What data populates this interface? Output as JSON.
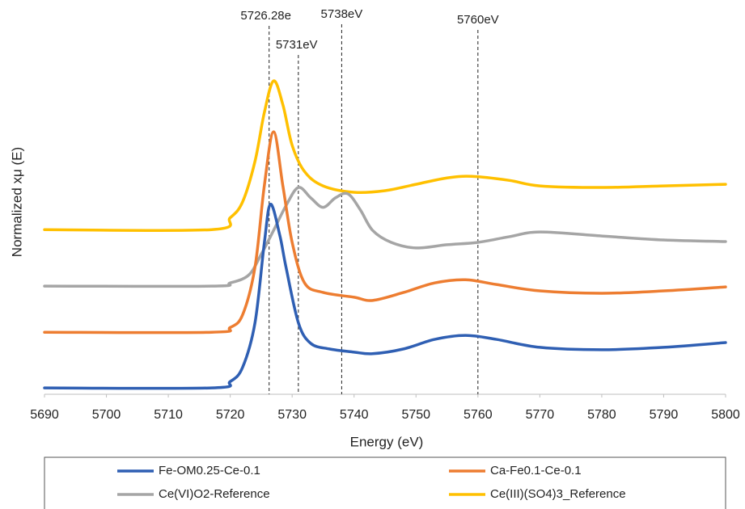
{
  "chart_data": {
    "type": "line",
    "x_label": "Energy (eV)",
    "y_label": "Normalized xμ (E)",
    "xlim": [
      5690,
      5800
    ],
    "xticks": [
      5690,
      5700,
      5710,
      5720,
      5730,
      5740,
      5750,
      5760,
      5770,
      5780,
      5790,
      5800
    ],
    "ylim": [
      0,
      4.5
    ],
    "legend": "bottom",
    "series": [
      {
        "name": "Fe-OM0.25-Ce-0.1",
        "color": "#2f5fb3",
        "x": [
          5690,
          5717,
          5720,
          5722,
          5724,
          5725.5,
          5726.5,
          5728,
          5729,
          5731,
          5733,
          5736,
          5740,
          5743,
          5748,
          5753,
          5758,
          5763,
          5770,
          5780,
          5790,
          5800
        ],
        "values": [
          0.08,
          0.08,
          0.16,
          0.34,
          0.9,
          1.9,
          2.39,
          2.0,
          1.6,
          0.9,
          0.64,
          0.57,
          0.53,
          0.51,
          0.57,
          0.69,
          0.74,
          0.69,
          0.59,
          0.56,
          0.59,
          0.65
        ]
      },
      {
        "name": "Ca-Fe0.1-Ce-0.1",
        "color": "#ed7d31",
        "x": [
          5690,
          5717,
          5720,
          5722,
          5724,
          5725.5,
          5727,
          5728.5,
          5730,
          5732,
          5735,
          5740,
          5743,
          5748,
          5753,
          5758,
          5763,
          5770,
          5780,
          5790,
          5800
        ],
        "values": [
          0.78,
          0.78,
          0.84,
          1.0,
          1.6,
          2.62,
          3.3,
          2.62,
          1.91,
          1.4,
          1.28,
          1.22,
          1.18,
          1.28,
          1.4,
          1.44,
          1.38,
          1.3,
          1.27,
          1.3,
          1.35
        ]
      },
      {
        "name": "Ce(VI)O2-Reference",
        "color": "#a5a5a5",
        "x": [
          5690,
          5717,
          5720,
          5723,
          5725,
          5727,
          5729,
          5731,
          5733,
          5735,
          5737,
          5739,
          5741,
          5743,
          5746,
          5750,
          5755,
          5760,
          5765,
          5770,
          5780,
          5790,
          5800
        ],
        "values": [
          1.36,
          1.36,
          1.4,
          1.5,
          1.76,
          2.06,
          2.37,
          2.6,
          2.47,
          2.35,
          2.47,
          2.52,
          2.32,
          2.06,
          1.91,
          1.84,
          1.88,
          1.91,
          1.98,
          2.04,
          1.99,
          1.94,
          1.92
        ]
      },
      {
        "name": "Ce(III)(SO4)3_Reference",
        "color": "#ffc000",
        "x": [
          5690,
          5717,
          5720,
          5722,
          5724,
          5725.5,
          5727,
          5728.5,
          5730,
          5732,
          5735,
          5740,
          5745,
          5750,
          5755,
          5759,
          5765,
          5770,
          5780,
          5790,
          5800
        ],
        "values": [
          2.07,
          2.07,
          2.22,
          2.42,
          2.93,
          3.54,
          3.94,
          3.64,
          3.13,
          2.8,
          2.62,
          2.54,
          2.56,
          2.64,
          2.72,
          2.74,
          2.69,
          2.62,
          2.6,
          2.62,
          2.64
        ]
      }
    ],
    "annotations": [
      {
        "x": 5726.28,
        "label": "5726.28e"
      },
      {
        "x": 5731,
        "label": "5731eV"
      },
      {
        "x": 5738,
        "label": "5738eV"
      },
      {
        "x": 5760,
        "label": "5760eV"
      }
    ]
  }
}
